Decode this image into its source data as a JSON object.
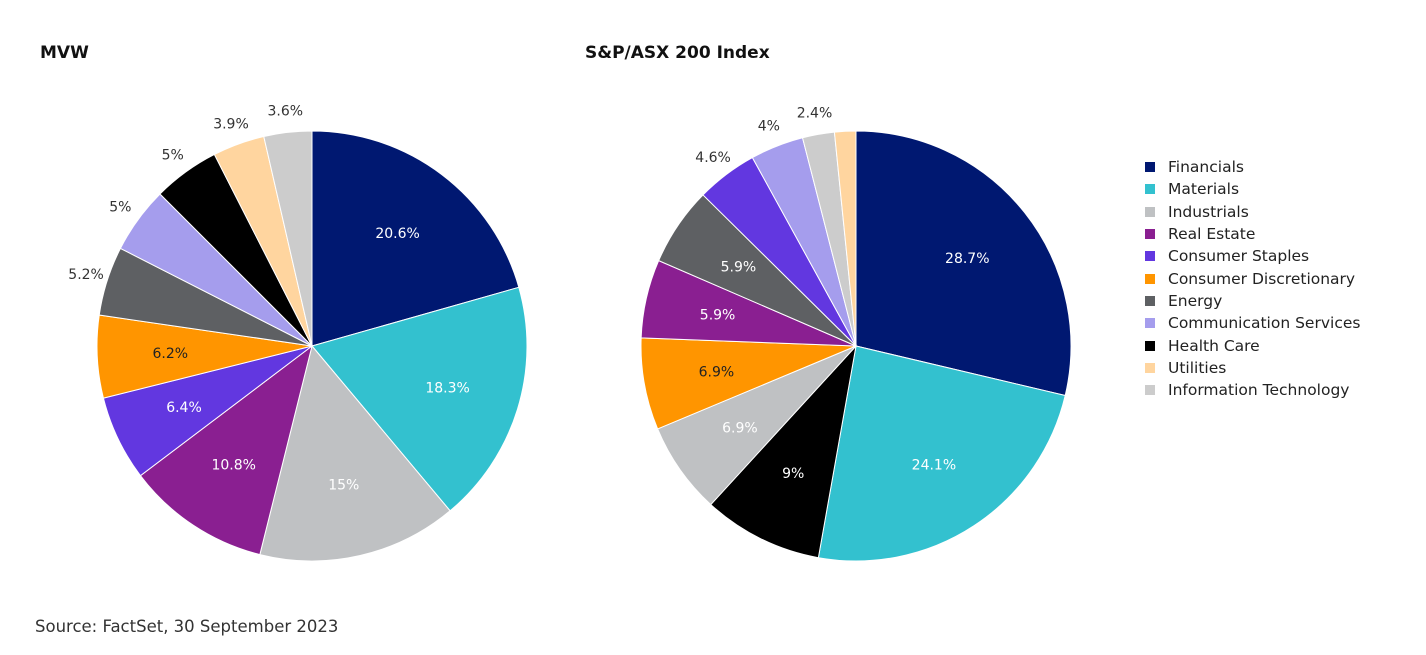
{
  "colors": {
    "Financials": "#001871",
    "Materials": "#33C1CF",
    "Industrials": "#BFC1C3",
    "Real Estate": "#8A1F91",
    "Consumer Staples": "#6237E0",
    "Consumer Discretionary": "#FF9500",
    "Energy": "#5E6063",
    "Communication Services": "#A59DED",
    "Health Care": "#000000",
    "Utilities": "#FFD59F",
    "Information Technology": "#CCCCCC"
  },
  "legend": {
    "items": [
      "Financials",
      "Materials",
      "Industrials",
      "Real Estate",
      "Consumer Staples",
      "Consumer Discretionary",
      "Energy",
      "Communication Services",
      "Health Care",
      "Utilities",
      "Information Technology"
    ]
  },
  "chart_data": [
    {
      "type": "pie",
      "title": "MVW",
      "slices": [
        {
          "label": "Financials",
          "value": 20.6,
          "text": "20.6%"
        },
        {
          "label": "Materials",
          "value": 18.3,
          "text": "18.3%"
        },
        {
          "label": "Industrials",
          "value": 15,
          "text": "15%"
        },
        {
          "label": "Real Estate",
          "value": 10.8,
          "text": "10.8%"
        },
        {
          "label": "Consumer Staples",
          "value": 6.4,
          "text": "6.4%"
        },
        {
          "label": "Consumer Discretionary",
          "value": 6.2,
          "text": "6.2%"
        },
        {
          "label": "Energy",
          "value": 5.2,
          "text": "5.2%"
        },
        {
          "label": "Communication Services",
          "value": 5,
          "text": "5%"
        },
        {
          "label": "Health Care",
          "value": 5,
          "text": "5%"
        },
        {
          "label": "Utilities",
          "value": 3.9,
          "text": "3.9%"
        },
        {
          "label": "Information Technology",
          "value": 3.6,
          "text": "3.6%"
        }
      ]
    },
    {
      "type": "pie",
      "title": "S&P/ASX 200 Index",
      "slices": [
        {
          "label": "Financials",
          "value": 28.7,
          "text": "28.7%"
        },
        {
          "label": "Materials",
          "value": 24.1,
          "text": "24.1%"
        },
        {
          "label": "Health Care",
          "value": 9,
          "text": "9%"
        },
        {
          "label": "Industrials",
          "value": 6.9,
          "text": "6.9%"
        },
        {
          "label": "Consumer Discretionary",
          "value": 6.9,
          "text": "6.9%"
        },
        {
          "label": "Real Estate",
          "value": 5.9,
          "text": "5.9%"
        },
        {
          "label": "Energy",
          "value": 5.9,
          "text": "5.9%"
        },
        {
          "label": "Consumer Staples",
          "value": 4.6,
          "text": "4.6%"
        },
        {
          "label": "Communication Services",
          "value": 4,
          "text": "4%"
        },
        {
          "label": "Information Technology",
          "value": 2.4,
          "text": "2.4%"
        },
        {
          "label": "Utilities",
          "value": 1.6,
          "text": ""
        }
      ]
    }
  ],
  "source": "Source: FactSet, 30 September 2023"
}
